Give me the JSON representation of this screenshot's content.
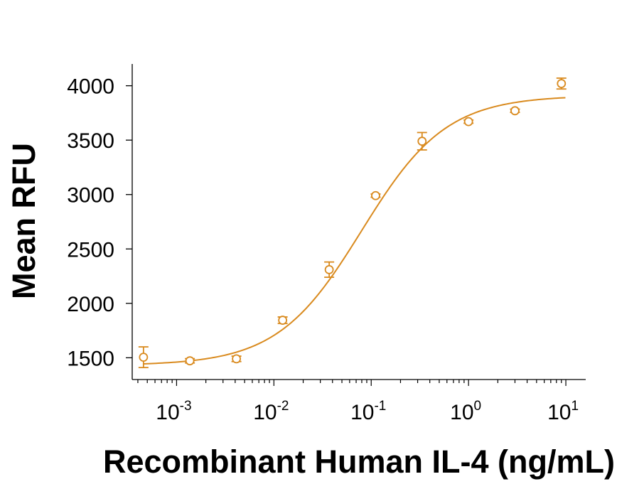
{
  "chart_data": {
    "type": "scatter",
    "title": "",
    "xlabel": "Recombinant Human IL-4 (ng/mL)",
    "ylabel": "Mean RFU",
    "x_scale": "log",
    "xlim": [
      0.00035,
      16
    ],
    "ylim": [
      1300,
      4200
    ],
    "x_ticks": [
      {
        "value": 0.001,
        "base": "10",
        "exp": "-3"
      },
      {
        "value": 0.01,
        "base": "10",
        "exp": "-2"
      },
      {
        "value": 0.1,
        "base": "10",
        "exp": "-1"
      },
      {
        "value": 1,
        "base": "10",
        "exp": "0"
      },
      {
        "value": 10,
        "base": "10",
        "exp": "1"
      }
    ],
    "y_ticks": [
      {
        "value": 1500,
        "label": "1500"
      },
      {
        "value": 2000,
        "label": "2000"
      },
      {
        "value": 2500,
        "label": "2500"
      },
      {
        "value": 3000,
        "label": "3000"
      },
      {
        "value": 3500,
        "label": "3500"
      },
      {
        "value": 4000,
        "label": "4000"
      }
    ],
    "grid": false,
    "legend": "none",
    "color": "#D98A1E",
    "series": [
      {
        "points": [
          {
            "x": 0.000457,
            "y": 1505,
            "err": 95
          },
          {
            "x": 0.00137,
            "y": 1472,
            "err": 20
          },
          {
            "x": 0.00412,
            "y": 1490,
            "err": 25
          },
          {
            "x": 0.0123,
            "y": 1845,
            "err": 30
          },
          {
            "x": 0.037,
            "y": 2310,
            "err": 70
          },
          {
            "x": 0.111,
            "y": 2990,
            "err": 15
          },
          {
            "x": 0.333,
            "y": 3490,
            "err": 80
          },
          {
            "x": 1.0,
            "y": 3670,
            "err": 15
          },
          {
            "x": 3.0,
            "y": 3770,
            "err": 15
          },
          {
            "x": 9.0,
            "y": 4020,
            "err": 50
          }
        ],
        "fit": {
          "model": "4PL",
          "bottom": 1430,
          "top": 3910,
          "ec50": 0.08,
          "hill": 1.0
        }
      }
    ]
  }
}
